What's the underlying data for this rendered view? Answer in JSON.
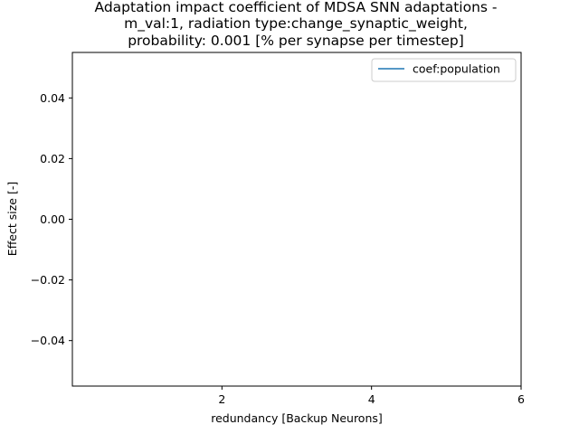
{
  "chart_data": {
    "type": "line",
    "title_lines": [
      "Adaptation impact coefficient of MDSA SNN adaptations -",
      "m_val:1, radiation type:change_synaptic_weight,",
      "probability: 0.001 [% per synapse per timestep]"
    ],
    "xlabel": "redundancy [Backup Neurons]",
    "ylabel": "Effect size [-]",
    "xlim": [
      0,
      6
    ],
    "ylim": [
      -0.055,
      0.055
    ],
    "xticks": [
      2,
      4,
      6
    ],
    "xtick_labels": [
      "2",
      "4",
      "6"
    ],
    "yticks": [
      -0.04,
      -0.02,
      0.0,
      0.02,
      0.04
    ],
    "ytick_labels": [
      "−0.04",
      "−0.02",
      "0.00",
      "0.02",
      "0.04"
    ],
    "grid": false,
    "legend_position": "upper-right",
    "series": [
      {
        "name": "coef:population",
        "color": "#1f77b4",
        "x": [],
        "y": []
      }
    ]
  }
}
